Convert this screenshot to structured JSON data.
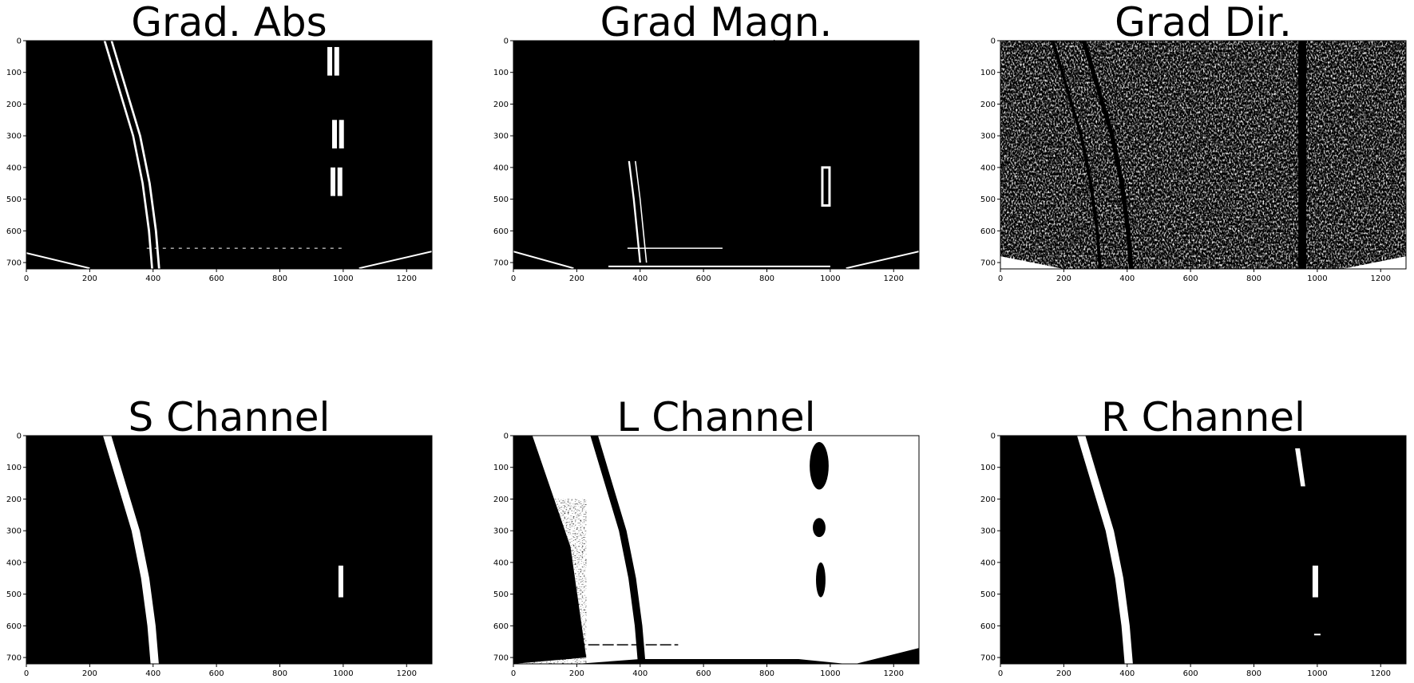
{
  "figure": {
    "panels": [
      {
        "id": "grad-abs",
        "title": "Grad. Abs",
        "fill": "mostly-black",
        "features": "thin-lane-edges"
      },
      {
        "id": "grad-magn",
        "title": "Grad Magn.",
        "fill": "mostly-black",
        "features": "sparse-edges"
      },
      {
        "id": "grad-dir",
        "title": "Grad Dir.",
        "fill": "noisy-speckle",
        "features": "dense-noise"
      },
      {
        "id": "s-channel",
        "title": "S Channel",
        "fill": "mostly-black",
        "features": "solid-lanes"
      },
      {
        "id": "l-channel",
        "title": "L Channel",
        "fill": "mostly-white",
        "features": "inverted-lanes"
      },
      {
        "id": "r-channel",
        "title": "R Channel",
        "fill": "mostly-black",
        "features": "solid-lanes"
      }
    ],
    "x_ticks": [
      0,
      200,
      400,
      600,
      800,
      1000,
      1200
    ],
    "y_ticks": [
      0,
      100,
      200,
      300,
      400,
      500,
      600,
      700
    ],
    "xlim": [
      0,
      1280
    ],
    "ylim": [
      720,
      0
    ]
  }
}
